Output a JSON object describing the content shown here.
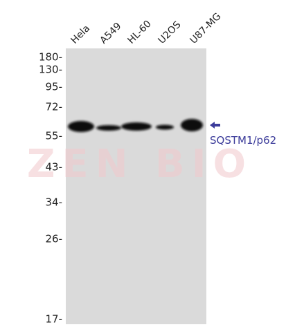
{
  "lanes": [
    "Hela",
    "A549",
    "HL-60",
    "U2OS",
    "U87-MG"
  ],
  "markers": [
    "180-",
    "130-",
    "95-",
    "72-",
    "55-",
    "43-",
    "34-",
    "26-",
    "17-"
  ],
  "band_label": "SQSTM1/p62",
  "watermark": "ZEN BIO"
}
